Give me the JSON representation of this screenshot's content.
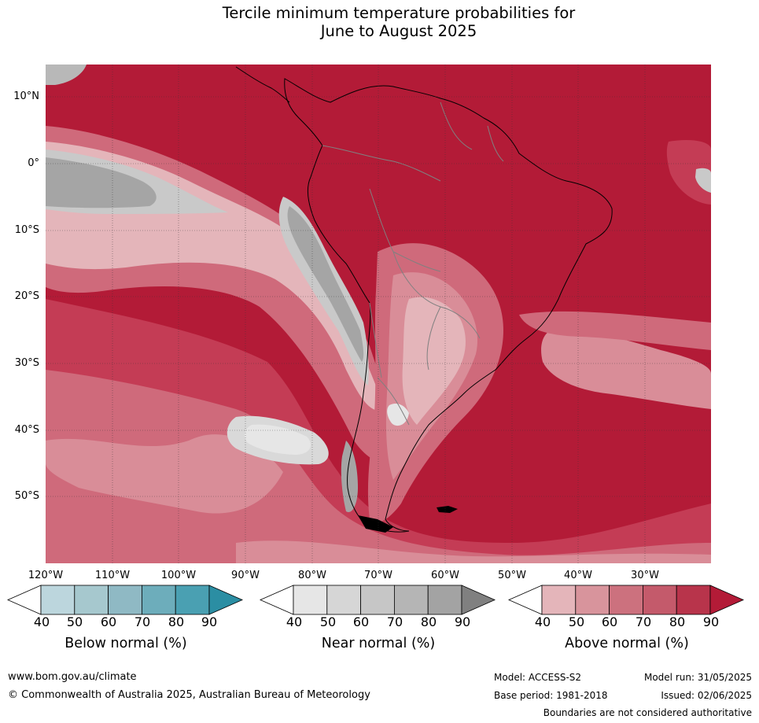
{
  "title": {
    "line1": "Tercile minimum temperature probabilities for",
    "line2": "June to August 2025"
  },
  "map": {
    "latitude_labels": [
      "10°N",
      "0°",
      "10°S",
      "20°S",
      "30°S",
      "40°S",
      "50°S"
    ],
    "longitude_labels": [
      "120°W",
      "110°W",
      "100°W",
      "90°W",
      "80°W",
      "70°W",
      "60°W",
      "50°W",
      "40°W",
      "30°W"
    ],
    "colors": {
      "above_90": "#b31b37",
      "above_80": "#c43c55",
      "above_70": "#cf6a7b",
      "above_60": "#d98d98",
      "above_50": "#e4b5ba",
      "near_90": "#7f7f7f",
      "near_80": "#a5a5a5",
      "near_70": "#b8b8b8",
      "near_60": "#c9c9c9",
      "near_50": "#d9d9d9",
      "near_40": "#e6e6e6",
      "below_40": "#bcd6dd",
      "coastline": "#000000",
      "borders": "#808080"
    }
  },
  "colorbars": [
    {
      "name": "below",
      "title": "Below normal (%)",
      "ticks": [
        "40",
        "50",
        "60",
        "70",
        "80",
        "90"
      ],
      "colors": [
        "#ffffff",
        "#bcd6dd",
        "#a6c8ce",
        "#8fb9c4",
        "#6dadbb",
        "#4aa0b2",
        "#2b8ea3"
      ]
    },
    {
      "name": "near",
      "title": "Near normal (%)",
      "ticks": [
        "40",
        "50",
        "60",
        "70",
        "80",
        "90"
      ],
      "colors": [
        "#ffffff",
        "#e6e6e6",
        "#d6d6d6",
        "#c6c6c6",
        "#b5b5b5",
        "#a3a3a3",
        "#808080"
      ]
    },
    {
      "name": "above",
      "title": "Above normal (%)",
      "ticks": [
        "40",
        "50",
        "60",
        "70",
        "80",
        "90"
      ],
      "colors": [
        "#ffffff",
        "#e4b5ba",
        "#d8949c",
        "#cc717e",
        "#c45a6b",
        "#b8344b",
        "#b31b37"
      ]
    }
  ],
  "footer": {
    "website": "www.bom.gov.au/climate",
    "copyright": "© Commonwealth of Australia 2025, Australian Bureau of Meteorology",
    "model": "Model: ACCESS-S2",
    "base_period": "Base period: 1981-2018",
    "model_run": "Model run: 31/05/2025",
    "issued": "Issued: 02/06/2025",
    "disclaimer": "Boundaries are not considered authoritative"
  }
}
